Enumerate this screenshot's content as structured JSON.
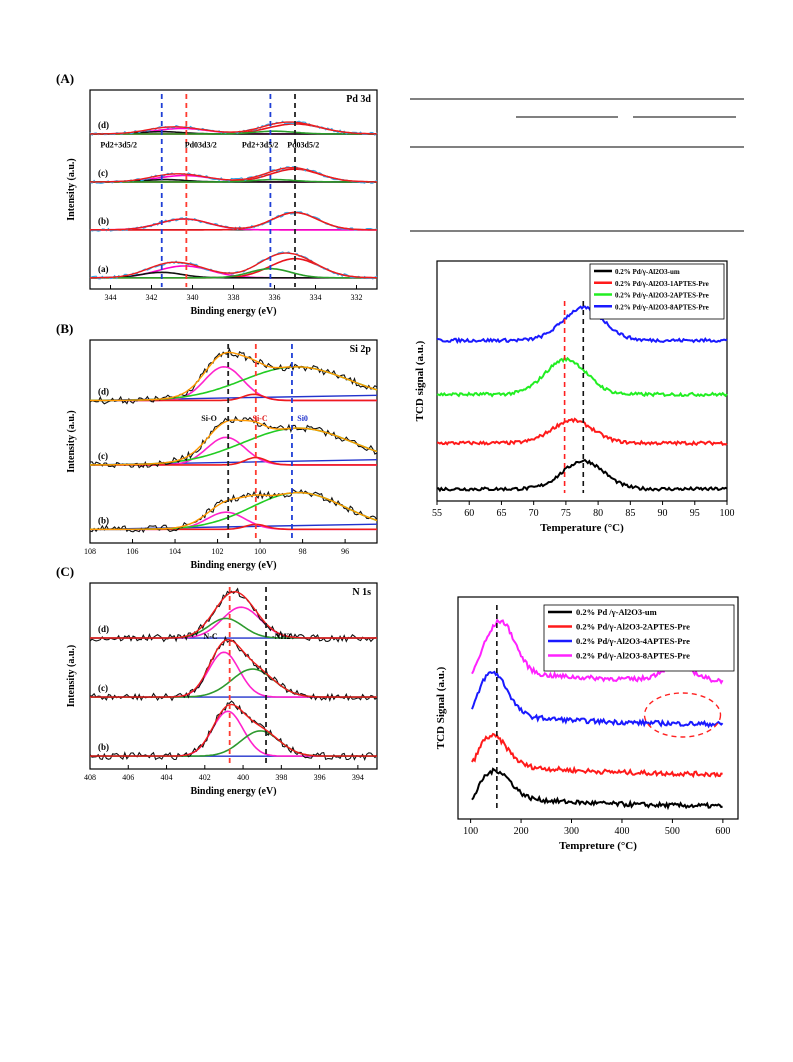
{
  "panels": [
    {
      "id": "A",
      "label": "(A)",
      "title": "Pd 3d",
      "xlabel": "Binding energy (eV)",
      "ylabel": "Intensity (a.u.)",
      "xlim": [
        345,
        331
      ],
      "xticks": [
        344,
        342,
        340,
        338,
        336,
        334,
        332
      ],
      "curve_labels": [
        "(d)",
        "(c)",
        "(b)",
        "(a)"
      ],
      "annotations": [
        "Pd2+3d5/2",
        "Pd03d3/2",
        "Pd2+3d5/2",
        "Pd03d5/2"
      ],
      "vlines": [
        {
          "x": 341.5,
          "color": "#1f3fd6"
        },
        {
          "x": 340.3,
          "color": "#ff3b30"
        },
        {
          "x": 336.2,
          "color": "#1f3fd6"
        },
        {
          "x": 335.0,
          "color": "#222222"
        }
      ],
      "curves": [
        {
          "label": "(d)",
          "baseline": 0.0,
          "peaks": [
            [
              340.5,
              0.12,
              1.3
            ],
            [
              335.0,
              0.22,
              1.3
            ],
            [
              341.5,
              0.05,
              1.0
            ],
            [
              336.0,
              0.06,
              1.0
            ]
          ]
        },
        {
          "label": "(c)",
          "baseline": 0.0,
          "peaks": [
            [
              340.4,
              0.14,
              1.3
            ],
            [
              335.0,
              0.28,
              1.2
            ],
            [
              341.3,
              0.05,
              1.0
            ],
            [
              336.0,
              0.05,
              1.0
            ]
          ]
        },
        {
          "label": "(b)",
          "baseline": 0.0,
          "peaks": [
            [
              340.4,
              0.24,
              1.2
            ],
            [
              335.0,
              0.38,
              1.1
            ]
          ]
        },
        {
          "label": "(a)",
          "baseline": 0.0,
          "peaks": [
            [
              340.4,
              0.26,
              1.3
            ],
            [
              335.0,
              0.42,
              1.2
            ],
            [
              341.5,
              0.12,
              1.0
            ],
            [
              336.2,
              0.2,
              1.0
            ]
          ]
        }
      ]
    },
    {
      "id": "B",
      "label": "(B)",
      "title": "Si 2p",
      "xlabel": "Binding energy (eV)",
      "ylabel": "Intensity (a.u.)",
      "xlim": [
        108,
        94.5
      ],
      "xticks": [
        108,
        106,
        104,
        102,
        100,
        98,
        96
      ],
      "curve_labels": [
        "(d)",
        "(c)",
        "(b)"
      ],
      "annotations": [
        "Si-O",
        "Si-C",
        "Si0"
      ],
      "vlines": [
        {
          "x": 101.5,
          "color": "#222222"
        },
        {
          "x": 100.2,
          "color": "#ff3b30"
        },
        {
          "x": 98.5,
          "color": "#1f3fd6"
        }
      ],
      "curves": [
        {
          "label": "(d)",
          "peaks": [
            [
              101.7,
              0.55,
              0.9
            ],
            [
              100.3,
              0.1,
              0.5
            ],
            [
              98.3,
              0.55,
              2.5
            ]
          ]
        },
        {
          "label": "(c)",
          "peaks": [
            [
              101.6,
              0.45,
              0.9
            ],
            [
              100.2,
              0.12,
              0.5
            ],
            [
              98.2,
              0.6,
              2.6
            ]
          ]
        },
        {
          "label": "(b)",
          "peaks": [
            [
              101.6,
              0.28,
              0.9
            ],
            [
              100.2,
              0.08,
              0.5
            ],
            [
              98.2,
              0.6,
              2.2
            ]
          ]
        }
      ]
    },
    {
      "id": "C",
      "label": "(C)",
      "title": "N 1s",
      "xlabel": "Binding energy (eV)",
      "ylabel": "Intensity (a.u.)",
      "xlim": [
        408,
        393
      ],
      "xticks": [
        408,
        406,
        404,
        402,
        400,
        398,
        396,
        394
      ],
      "curve_labels": [
        "(d)",
        "(c)",
        "(b)"
      ],
      "annotations": [
        "N-C",
        "-NH2"
      ],
      "vlines": [
        {
          "x": 400.7,
          "color": "#ff3b30"
        },
        {
          "x": 398.8,
          "color": "#222222"
        }
      ],
      "curves": [
        {
          "label": "(d)",
          "peaks": [
            [
              400.1,
              0.55,
              1.0
            ],
            [
              400.9,
              0.35,
              0.9
            ]
          ]
        },
        {
          "label": "(c)",
          "peaks": [
            [
              401.0,
              0.8,
              0.8
            ],
            [
              399.5,
              0.5,
              1.1
            ]
          ]
        },
        {
          "label": "(b)",
          "peaks": [
            [
              400.8,
              0.8,
              0.8
            ],
            [
              399.1,
              0.45,
              1.0
            ]
          ]
        }
      ]
    }
  ],
  "table_placeholder": {
    "present": true
  },
  "chart_data": [
    {
      "type": "line",
      "title": "",
      "xlabel": "Temperature (°C)",
      "ylabel": "TCD signal (a.u.)",
      "xlim": [
        55,
        100
      ],
      "xticks": [
        55,
        60,
        65,
        70,
        75,
        80,
        85,
        90,
        95,
        100
      ],
      "legend_position": "top-right",
      "vlines": [
        {
          "x": 74.8,
          "color": "#ff2020"
        },
        {
          "x": 77.7,
          "color": "#111111"
        }
      ],
      "series": [
        {
          "name": "0.2% Pd/γ-Al2O3-um",
          "color": "#000000",
          "peak_x": 77.7,
          "peak_height": 0.52,
          "offset": 0.0
        },
        {
          "name": "0.2% Pd/γ-Al2O3-1APTES-Pre",
          "color": "#ff1a1a",
          "peak_x": 76.0,
          "peak_height": 0.42,
          "offset": 0.85
        },
        {
          "name": "0.2% Pd/γ-Al2O3-2APTES-Pre",
          "color": "#22ee22",
          "peak_x": 75.0,
          "peak_height": 0.65,
          "offset": 1.75
        },
        {
          "name": "0.2% Pd/γ-Al2O3-8APTES-Pre",
          "color": "#1a1aff",
          "peak_x": 77.7,
          "peak_height": 0.6,
          "offset": 2.75
        }
      ]
    },
    {
      "type": "line",
      "title": "",
      "xlabel": "Tempreture (°C)",
      "ylabel": "TCD Signal (a.u.)",
      "xlim": [
        75,
        630
      ],
      "xticks": [
        100,
        200,
        300,
        400,
        500,
        600
      ],
      "legend_position": "top-right",
      "vlines": [
        {
          "x": 152,
          "color": "#111111"
        }
      ],
      "series": [
        {
          "name": "0.2% Pd /γ-Al2O3-um",
          "color": "#000000",
          "peak_x": 152,
          "peak_height": 0.55,
          "offset": 0.0
        },
        {
          "name": "0.2% Pd/γ-Al2O3-2APTES-Pre",
          "color": "#ff1a1a",
          "peak_x": 145,
          "peak_height": 0.6,
          "offset": 0.7
        },
        {
          "name": "0.2% Pd/γ-Al2O3-4APTES-Pre",
          "color": "#1a1aff",
          "peak_x": 145,
          "peak_height": 0.9,
          "offset": 1.8
        },
        {
          "name": "0.2% Pd/γ-Al2O3-8APTES-Pre",
          "color": "#ff22ff",
          "peak_x": 160,
          "peak_height": 1.1,
          "offset": 2.75
        }
      ],
      "highlight": {
        "x_center": 520,
        "shape": "ellipse",
        "color": "#ff2020"
      }
    }
  ]
}
